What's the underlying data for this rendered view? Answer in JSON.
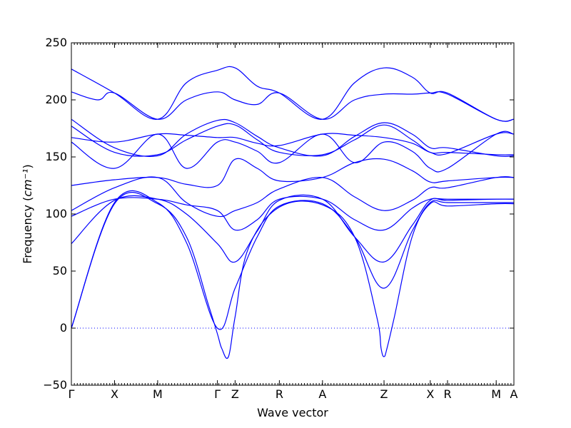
{
  "chart_data": {
    "type": "line",
    "title": "",
    "xlabel": "Wave vector",
    "ylabel": "Frequency",
    "ylabel_unit": "cm⁻¹",
    "ylim": [
      -50,
      250
    ],
    "yticks": [
      -50,
      0,
      50,
      100,
      150,
      200,
      250
    ],
    "xlim": [
      0,
      1
    ],
    "high_symmetry_points": [
      {
        "label": "Γ",
        "x": 0.0
      },
      {
        "label": "X",
        "x": 0.0975
      },
      {
        "label": "M",
        "x": 0.195
      },
      {
        "label": "Γ",
        "x": 0.33
      },
      {
        "label": "Z",
        "x": 0.37
      },
      {
        "label": "R",
        "x": 0.47
      },
      {
        "label": "A",
        "x": 0.5675
      },
      {
        "label": "Z",
        "x": 0.7065
      },
      {
        "label": "X",
        "x": 0.811
      },
      {
        "label": "R",
        "x": 0.85
      },
      {
        "label": "M",
        "x": 0.96
      },
      {
        "label": "A",
        "x": 1.0
      }
    ],
    "zero_line": {
      "y": 0,
      "style": "dotted"
    },
    "line_color": "#0000ff",
    "series": [
      {
        "x": [
          0,
          0.0975,
          0.195,
          0.26,
          0.33,
          0.37,
          0.42,
          0.47,
          0.5675,
          0.64,
          0.7065,
          0.77,
          0.811,
          0.85,
          0.96,
          1.0
        ],
        "y": [
          227,
          206,
          183,
          215,
          226,
          228,
          212,
          206,
          183,
          215,
          228,
          220,
          206,
          206,
          183,
          183
        ]
      },
      {
        "x": [
          0,
          0.06,
          0.0975,
          0.195,
          0.26,
          0.33,
          0.37,
          0.42,
          0.47,
          0.5675,
          0.64,
          0.7065,
          0.77,
          0.811,
          0.85,
          0.96,
          1.0
        ],
        "y": [
          207,
          200,
          206,
          183,
          200,
          207,
          200,
          196,
          206,
          183,
          200,
          205,
          205,
          206,
          205,
          183,
          183
        ]
      },
      {
        "x": [
          0,
          0.0975,
          0.195,
          0.26,
          0.33,
          0.37,
          0.42,
          0.47,
          0.5675,
          0.64,
          0.7065,
          0.77,
          0.811,
          0.85,
          0.96,
          1.0
        ],
        "y": [
          183,
          158,
          151,
          170,
          182,
          180,
          168,
          158,
          151,
          168,
          180,
          170,
          158,
          158,
          151,
          151
        ]
      },
      {
        "x": [
          0,
          0.0975,
          0.195,
          0.26,
          0.33,
          0.37,
          0.42,
          0.47,
          0.5675,
          0.64,
          0.7065,
          0.77,
          0.811,
          0.85,
          0.96,
          1.0
        ],
        "y": [
          177,
          154,
          152,
          165,
          177,
          178,
          165,
          154,
          152,
          165,
          178,
          165,
          154,
          154,
          152,
          152
        ]
      },
      {
        "x": [
          0,
          0.0975,
          0.195,
          0.26,
          0.33,
          0.37,
          0.42,
          0.47,
          0.5675,
          0.64,
          0.7065,
          0.77,
          0.811,
          0.85,
          0.96,
          1.0
        ],
        "y": [
          167,
          163,
          170,
          169,
          167,
          167,
          162,
          160,
          170,
          169,
          167,
          162,
          154,
          153,
          170,
          170
        ]
      },
      {
        "x": [
          0,
          0.0975,
          0.195,
          0.26,
          0.33,
          0.37,
          0.42,
          0.47,
          0.5675,
          0.64,
          0.7065,
          0.77,
          0.811,
          0.85,
          0.96,
          1.0
        ],
        "y": [
          163,
          140,
          170,
          140,
          163,
          163,
          155,
          145,
          170,
          145,
          163,
          155,
          140,
          140,
          170,
          170
        ]
      },
      {
        "x": [
          0,
          0.0975,
          0.195,
          0.26,
          0.33,
          0.37,
          0.42,
          0.47,
          0.5675,
          0.64,
          0.7065,
          0.77,
          0.811,
          0.85,
          0.96,
          1.0
        ],
        "y": [
          125,
          130,
          132,
          126,
          125,
          148,
          140,
          129,
          132,
          145,
          148,
          138,
          128,
          129,
          132,
          132
        ]
      },
      {
        "x": [
          0,
          0.0975,
          0.195,
          0.26,
          0.33,
          0.37,
          0.42,
          0.47,
          0.5675,
          0.64,
          0.7065,
          0.77,
          0.811,
          0.85,
          0.96,
          1.0
        ],
        "y": [
          103,
          123,
          132,
          110,
          98,
          103,
          110,
          122,
          132,
          115,
          103,
          112,
          123,
          123,
          132,
          132
        ]
      },
      {
        "x": [
          0,
          0.0975,
          0.195,
          0.26,
          0.33,
          0.37,
          0.42,
          0.47,
          0.5675,
          0.64,
          0.7065,
          0.77,
          0.811,
          0.85,
          0.96,
          1.0
        ],
        "y": [
          98,
          113,
          113,
          108,
          103,
          86,
          95,
          113,
          113,
          95,
          86,
          105,
          113,
          113,
          113,
          113
        ]
      },
      {
        "x": [
          0,
          0.0975,
          0.195,
          0.26,
          0.33,
          0.37,
          0.42,
          0.47,
          0.5675,
          0.64,
          0.7065,
          0.77,
          0.811,
          0.85,
          0.96,
          1.0
        ],
        "y": [
          74,
          112,
          113,
          100,
          74,
          58,
          85,
          112,
          113,
          80,
          58,
          90,
          112,
          112,
          113,
          113
        ]
      },
      {
        "x": [
          0,
          0.0975,
          0.195,
          0.26,
          0.33,
          0.37,
          0.42,
          0.47,
          0.5675,
          0.64,
          0.7065,
          0.77,
          0.811,
          0.85,
          0.96,
          1.0
        ],
        "y": [
          0,
          110,
          110,
          75,
          0,
          35,
          80,
          107,
          109,
          80,
          35,
          85,
          110,
          110,
          110,
          110
        ]
      },
      {
        "x": [
          0,
          0.0975,
          0.195,
          0.26,
          0.31,
          0.33,
          0.34,
          0.355,
          0.37,
          0.4,
          0.47,
          0.5675,
          0.64,
          0.69,
          0.7,
          0.7065,
          0.713,
          0.73,
          0.77,
          0.811,
          0.85,
          0.96,
          1.0
        ],
        "y": [
          0,
          109,
          109,
          80,
          20,
          -5,
          -18,
          -25,
          10,
          70,
          106,
          108,
          80,
          10,
          -18,
          -25,
          -18,
          10,
          80,
          109,
          107,
          109,
          109
        ]
      }
    ]
  }
}
